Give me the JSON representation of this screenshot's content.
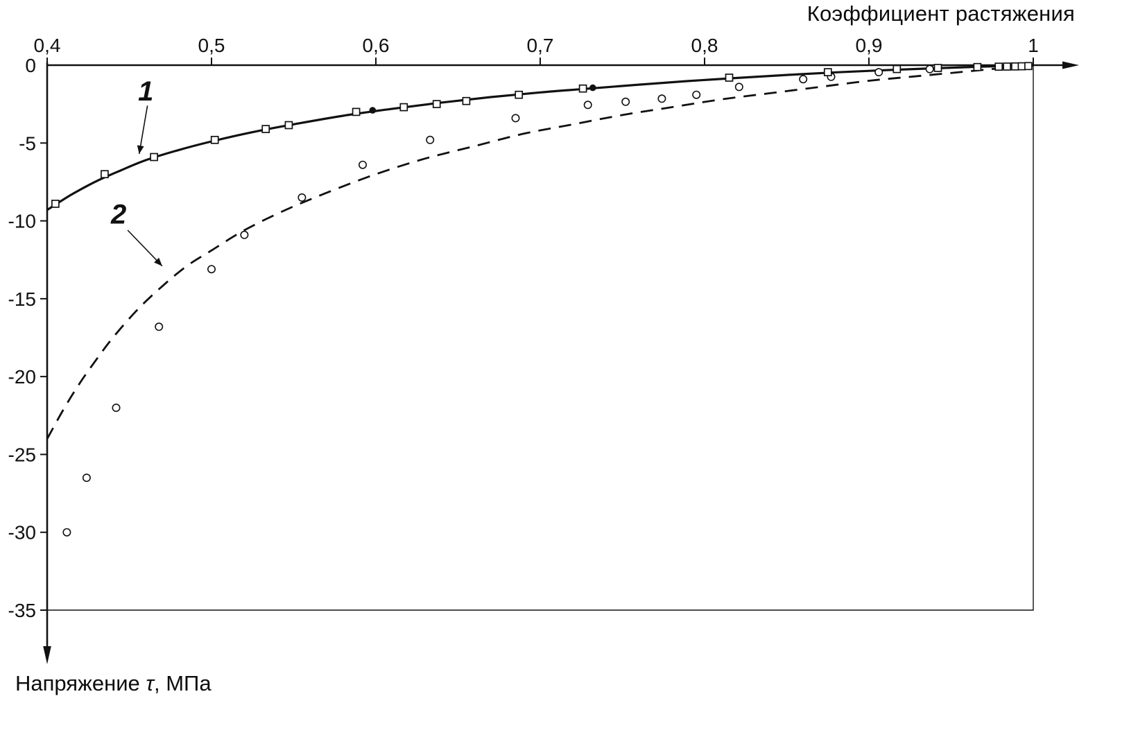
{
  "chart_data": {
    "type": "line",
    "title": "",
    "xlabel": "Коэффициент растяжения",
    "ylabel": "Напряжение τ, МПа",
    "ylabel_prefix": "Напряжение ",
    "ylabel_symbol": "τ",
    "ylabel_suffix": ", МПа",
    "xlim": [
      0.4,
      1.0
    ],
    "ylim": [
      -35,
      0
    ],
    "grid": false,
    "legend": "none",
    "x_ticks": [
      {
        "value": 0.4,
        "label": "0,4"
      },
      {
        "value": 0.5,
        "label": "0,5"
      },
      {
        "value": 0.6,
        "label": "0,6"
      },
      {
        "value": 0.7,
        "label": "0,7"
      },
      {
        "value": 0.8,
        "label": "0,8"
      },
      {
        "value": 0.9,
        "label": "0,9"
      },
      {
        "value": 1.0,
        "label": "1"
      }
    ],
    "y_ticks": [
      {
        "value": 0,
        "label": "0"
      },
      {
        "value": -5,
        "label": "-5"
      },
      {
        "value": -10,
        "label": "-10"
      },
      {
        "value": -15,
        "label": "-15"
      },
      {
        "value": -20,
        "label": "-20"
      },
      {
        "value": -25,
        "label": "-25"
      },
      {
        "value": -30,
        "label": "-30"
      },
      {
        "value": -35,
        "label": "-35"
      }
    ],
    "series": [
      {
        "name": "1",
        "line_style": "solid",
        "marker": "open-square",
        "curve": [
          [
            0.4,
            -9.3
          ],
          [
            0.415,
            -8.3
          ],
          [
            0.43,
            -7.45
          ],
          [
            0.445,
            -6.75
          ],
          [
            0.46,
            -6.1
          ],
          [
            0.48,
            -5.45
          ],
          [
            0.5,
            -4.9
          ],
          [
            0.525,
            -4.3
          ],
          [
            0.55,
            -3.8
          ],
          [
            0.58,
            -3.25
          ],
          [
            0.61,
            -2.8
          ],
          [
            0.64,
            -2.4
          ],
          [
            0.67,
            -2.05
          ],
          [
            0.7,
            -1.75
          ],
          [
            0.73,
            -1.5
          ],
          [
            0.76,
            -1.25
          ],
          [
            0.79,
            -1.02
          ],
          [
            0.82,
            -0.82
          ],
          [
            0.85,
            -0.63
          ],
          [
            0.88,
            -0.46
          ],
          [
            0.91,
            -0.32
          ],
          [
            0.94,
            -0.2
          ],
          [
            0.97,
            -0.09
          ],
          [
            1.0,
            -0.02
          ]
        ],
        "points": [
          [
            0.405,
            -8.9
          ],
          [
            0.435,
            -7.0
          ],
          [
            0.465,
            -5.9
          ],
          [
            0.502,
            -4.8
          ],
          [
            0.533,
            -4.1
          ],
          [
            0.547,
            -3.85
          ],
          [
            0.588,
            -3.0
          ],
          [
            0.617,
            -2.7
          ],
          [
            0.637,
            -2.5
          ],
          [
            0.655,
            -2.3
          ],
          [
            0.687,
            -1.9
          ],
          [
            0.726,
            -1.5
          ],
          [
            0.815,
            -0.8
          ],
          [
            0.875,
            -0.45
          ],
          [
            0.917,
            -0.25
          ],
          [
            0.942,
            -0.18
          ],
          [
            0.966,
            -0.12
          ],
          [
            0.979,
            -0.1
          ],
          [
            0.984,
            -0.09
          ],
          [
            0.989,
            -0.08
          ],
          [
            0.993,
            -0.07
          ],
          [
            0.997,
            -0.06
          ]
        ],
        "filled_points": [
          [
            0.598,
            -2.9
          ],
          [
            0.732,
            -1.45
          ]
        ]
      },
      {
        "name": "2",
        "line_style": "dashed",
        "marker": "open-circle",
        "curve": [
          [
            0.4,
            -24.0
          ],
          [
            0.41,
            -22.1
          ],
          [
            0.42,
            -20.4
          ],
          [
            0.43,
            -18.9
          ],
          [
            0.44,
            -17.5
          ],
          [
            0.455,
            -15.7
          ],
          [
            0.47,
            -14.2
          ],
          [
            0.485,
            -12.9
          ],
          [
            0.5,
            -11.9
          ],
          [
            0.52,
            -10.6
          ],
          [
            0.545,
            -9.3
          ],
          [
            0.57,
            -8.2
          ],
          [
            0.6,
            -7.0
          ],
          [
            0.63,
            -6.0
          ],
          [
            0.66,
            -5.2
          ],
          [
            0.69,
            -4.4
          ],
          [
            0.72,
            -3.8
          ],
          [
            0.75,
            -3.2
          ],
          [
            0.78,
            -2.7
          ],
          [
            0.81,
            -2.2
          ],
          [
            0.84,
            -1.8
          ],
          [
            0.87,
            -1.4
          ],
          [
            0.9,
            -1.0
          ],
          [
            0.93,
            -0.7
          ],
          [
            0.96,
            -0.4
          ],
          [
            0.98,
            -0.2
          ],
          [
            1.0,
            -0.05
          ]
        ],
        "points": [
          [
            0.412,
            -30.0
          ],
          [
            0.424,
            -26.5
          ],
          [
            0.442,
            -22.0
          ],
          [
            0.468,
            -16.8
          ],
          [
            0.5,
            -13.1
          ],
          [
            0.52,
            -10.9
          ],
          [
            0.555,
            -8.5
          ],
          [
            0.592,
            -6.4
          ],
          [
            0.633,
            -4.8
          ],
          [
            0.685,
            -3.4
          ],
          [
            0.729,
            -2.55
          ],
          [
            0.752,
            -2.35
          ],
          [
            0.774,
            -2.15
          ],
          [
            0.795,
            -1.9
          ],
          [
            0.821,
            -1.4
          ],
          [
            0.86,
            -0.9
          ],
          [
            0.877,
            -0.75
          ],
          [
            0.906,
            -0.45
          ],
          [
            0.937,
            -0.25
          ]
        ],
        "filled_points": []
      }
    ],
    "annotations": [
      {
        "label": "1",
        "label_x": 0.46,
        "label_y": -1.7,
        "arrow_from": [
          0.461,
          -2.6
        ],
        "arrow_to": [
          0.456,
          -5.7
        ]
      },
      {
        "label": "2",
        "label_x": 0.4435,
        "label_y": -9.6,
        "arrow_from": [
          0.449,
          -10.6
        ],
        "arrow_to": [
          0.47,
          -12.9
        ]
      }
    ],
    "colors": {
      "foreground": "#111111",
      "background": "#ffffff"
    }
  }
}
